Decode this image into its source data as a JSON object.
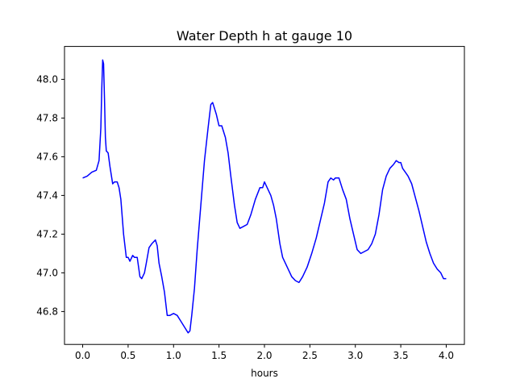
{
  "chart_data": {
    "type": "line",
    "title": "Water Depth h at gauge 10",
    "xlabel": "hours",
    "ylabel": "",
    "xlim": [
      -0.2,
      4.2
    ],
    "ylim": [
      46.63,
      48.17
    ],
    "xticks": [
      0.0,
      0.5,
      1.0,
      1.5,
      2.0,
      2.5,
      3.0,
      3.5,
      4.0
    ],
    "xtick_labels": [
      "0.0",
      "0.5",
      "1.0",
      "1.5",
      "2.0",
      "2.5",
      "3.0",
      "3.5",
      "4.0"
    ],
    "yticks": [
      46.8,
      47.0,
      47.2,
      47.4,
      47.6,
      47.8,
      48.0
    ],
    "ytick_labels": [
      "46.8",
      "47.0",
      "47.2",
      "47.4",
      "47.6",
      "47.8",
      "48.0"
    ],
    "grid": false,
    "legend": "none",
    "series": [
      {
        "color": "#0000ff",
        "x": [
          0.0,
          0.05,
          0.1,
          0.15,
          0.18,
          0.2,
          0.21,
          0.22,
          0.23,
          0.24,
          0.25,
          0.26,
          0.28,
          0.3,
          0.33,
          0.35,
          0.38,
          0.4,
          0.42,
          0.45,
          0.48,
          0.5,
          0.52,
          0.55,
          0.57,
          0.6,
          0.63,
          0.65,
          0.68,
          0.7,
          0.73,
          0.76,
          0.8,
          0.82,
          0.84,
          0.87,
          0.9,
          0.93,
          0.96,
          1.0,
          1.04,
          1.08,
          1.12,
          1.16,
          1.18,
          1.2,
          1.23,
          1.26,
          1.3,
          1.34,
          1.38,
          1.41,
          1.43,
          1.45,
          1.47,
          1.5,
          1.53,
          1.57,
          1.6,
          1.63,
          1.67,
          1.7,
          1.73,
          1.77,
          1.81,
          1.85,
          1.9,
          1.95,
          1.98,
          2.0,
          2.03,
          2.07,
          2.1,
          2.13,
          2.17,
          2.2,
          2.25,
          2.3,
          2.34,
          2.38,
          2.42,
          2.47,
          2.52,
          2.57,
          2.62,
          2.66,
          2.7,
          2.73,
          2.76,
          2.78,
          2.82,
          2.86,
          2.9,
          2.94,
          2.98,
          3.02,
          3.06,
          3.1,
          3.14,
          3.18,
          3.22,
          3.26,
          3.3,
          3.34,
          3.38,
          3.42,
          3.45,
          3.48,
          3.5,
          3.52,
          3.55,
          3.58,
          3.62,
          3.66,
          3.7,
          3.74,
          3.78,
          3.82,
          3.86,
          3.9,
          3.94,
          3.97,
          4.0
        ],
        "y": [
          47.49,
          47.5,
          47.52,
          47.53,
          47.58,
          47.75,
          47.95,
          48.1,
          48.08,
          47.9,
          47.7,
          47.63,
          47.62,
          47.55,
          47.46,
          47.47,
          47.47,
          47.44,
          47.38,
          47.2,
          47.08,
          47.08,
          47.06,
          47.09,
          47.08,
          47.08,
          46.98,
          46.97,
          47.0,
          47.05,
          47.13,
          47.15,
          47.17,
          47.14,
          47.05,
          46.98,
          46.9,
          46.78,
          46.78,
          46.79,
          46.78,
          46.75,
          46.72,
          46.69,
          46.7,
          46.78,
          46.92,
          47.12,
          47.35,
          47.58,
          47.75,
          47.87,
          47.88,
          47.85,
          47.82,
          47.76,
          47.76,
          47.7,
          47.62,
          47.5,
          47.35,
          47.26,
          47.23,
          47.24,
          47.25,
          47.3,
          47.38,
          47.44,
          47.44,
          47.47,
          47.44,
          47.4,
          47.35,
          47.28,
          47.15,
          47.08,
          47.03,
          46.98,
          46.96,
          46.95,
          46.98,
          47.03,
          47.1,
          47.18,
          47.28,
          47.36,
          47.47,
          47.49,
          47.48,
          47.49,
          47.49,
          47.43,
          47.38,
          47.28,
          47.2,
          47.12,
          47.1,
          47.11,
          47.12,
          47.15,
          47.2,
          47.3,
          47.43,
          47.5,
          47.54,
          47.56,
          47.58,
          47.57,
          47.57,
          47.54,
          47.52,
          47.5,
          47.46,
          47.39,
          47.32,
          47.24,
          47.16,
          47.1,
          47.05,
          47.02,
          47.0,
          46.97,
          46.97
        ]
      }
    ]
  }
}
